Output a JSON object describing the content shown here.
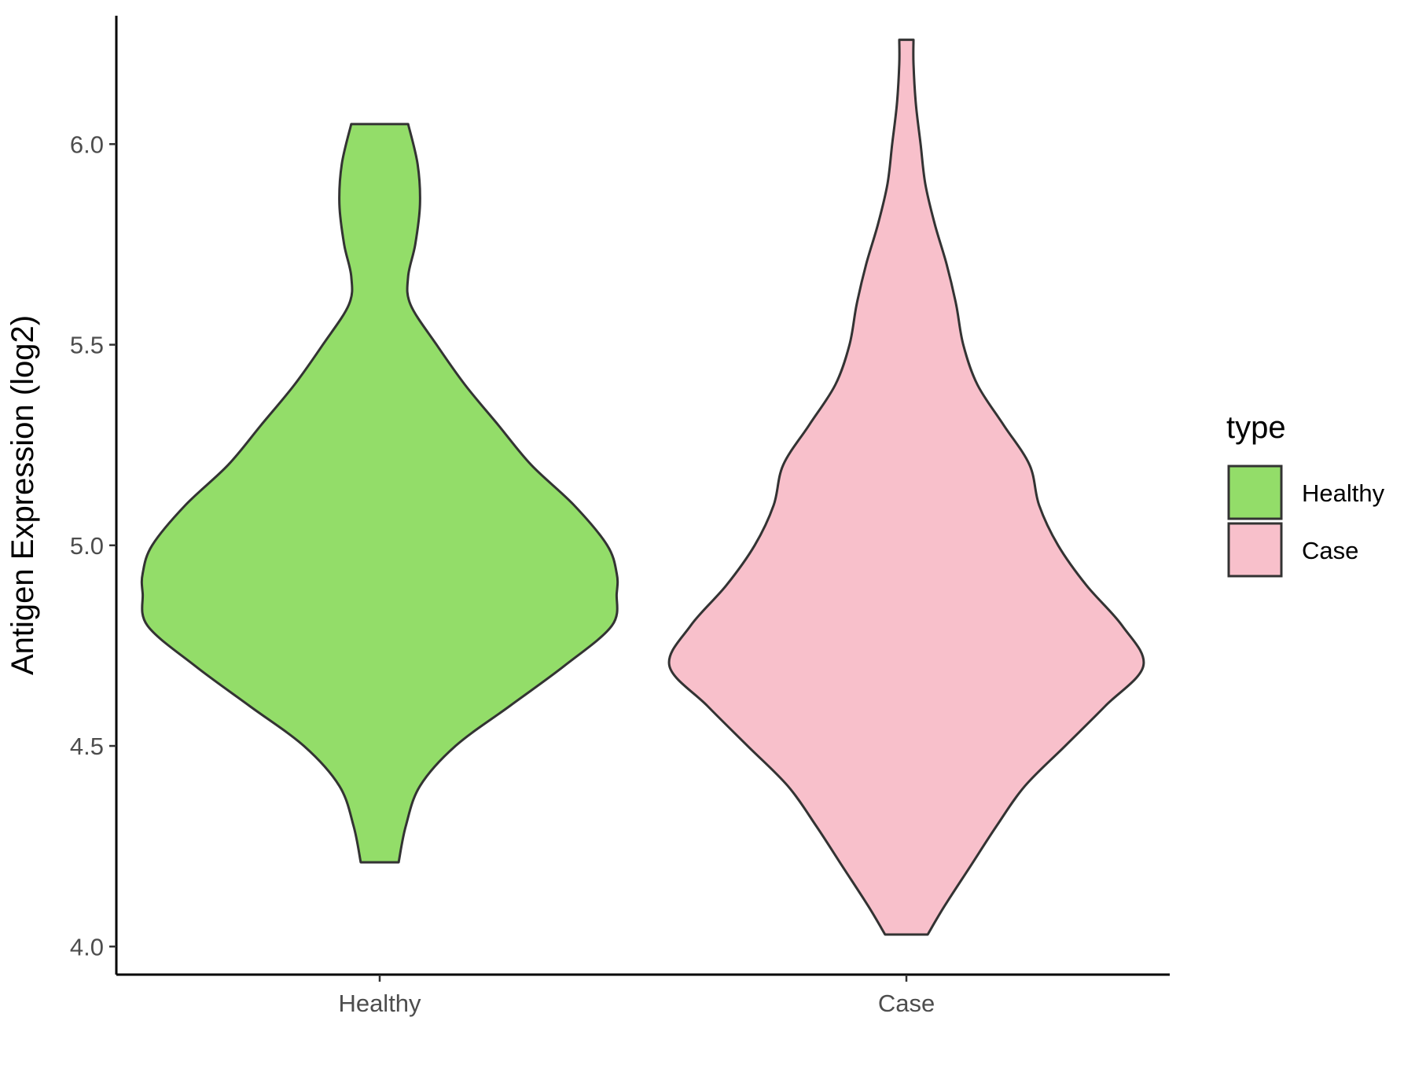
{
  "chart_data": {
    "type": "violin",
    "categories": [
      "Healthy",
      "Case"
    ],
    "ylabel": "Antigen Expression (log2)",
    "xlabel": "",
    "ylim": [
      3.93,
      6.32
    ],
    "yticks": [
      4.0,
      4.5,
      5.0,
      5.5,
      6.0
    ],
    "ytick_labels": [
      "4.0",
      "4.5",
      "5.0",
      "5.5",
      "6.0"
    ],
    "grid": false,
    "series": [
      {
        "name": "Healthy",
        "color": "#93dd69",
        "min": 4.21,
        "max": 6.05,
        "density_profile": [
          [
            4.21,
            0.08
          ],
          [
            4.3,
            0.11
          ],
          [
            4.4,
            0.17
          ],
          [
            4.5,
            0.32
          ],
          [
            4.6,
            0.55
          ],
          [
            4.7,
            0.78
          ],
          [
            4.8,
            0.98
          ],
          [
            4.88,
            1.0
          ],
          [
            4.93,
            1.0
          ],
          [
            5.0,
            0.96
          ],
          [
            5.1,
            0.82
          ],
          [
            5.2,
            0.64
          ],
          [
            5.3,
            0.5
          ],
          [
            5.4,
            0.36
          ],
          [
            5.5,
            0.24
          ],
          [
            5.6,
            0.13
          ],
          [
            5.67,
            0.12
          ],
          [
            5.75,
            0.15
          ],
          [
            5.85,
            0.17
          ],
          [
            5.95,
            0.16
          ],
          [
            6.05,
            0.12
          ]
        ]
      },
      {
        "name": "Case",
        "color": "#f8c0cb",
        "min": 4.03,
        "max": 6.26,
        "density_profile": [
          [
            4.03,
            0.09
          ],
          [
            4.1,
            0.16
          ],
          [
            4.2,
            0.27
          ],
          [
            4.3,
            0.38
          ],
          [
            4.4,
            0.5
          ],
          [
            4.5,
            0.67
          ],
          [
            4.6,
            0.84
          ],
          [
            4.7,
            1.0
          ],
          [
            4.8,
            0.91
          ],
          [
            4.9,
            0.76
          ],
          [
            5.0,
            0.64
          ],
          [
            5.1,
            0.56
          ],
          [
            5.2,
            0.52
          ],
          [
            5.3,
            0.41
          ],
          [
            5.4,
            0.3
          ],
          [
            5.5,
            0.24
          ],
          [
            5.6,
            0.21
          ],
          [
            5.7,
            0.17
          ],
          [
            5.8,
            0.12
          ],
          [
            5.9,
            0.08
          ],
          [
            6.0,
            0.06
          ],
          [
            6.1,
            0.04
          ],
          [
            6.2,
            0.03
          ],
          [
            6.26,
            0.03
          ]
        ]
      }
    ],
    "legend": {
      "title": "type",
      "placement": "right",
      "entries": [
        {
          "label": "Healthy",
          "color": "#93dd69"
        },
        {
          "label": "Case",
          "color": "#f8c0cb"
        }
      ]
    }
  }
}
